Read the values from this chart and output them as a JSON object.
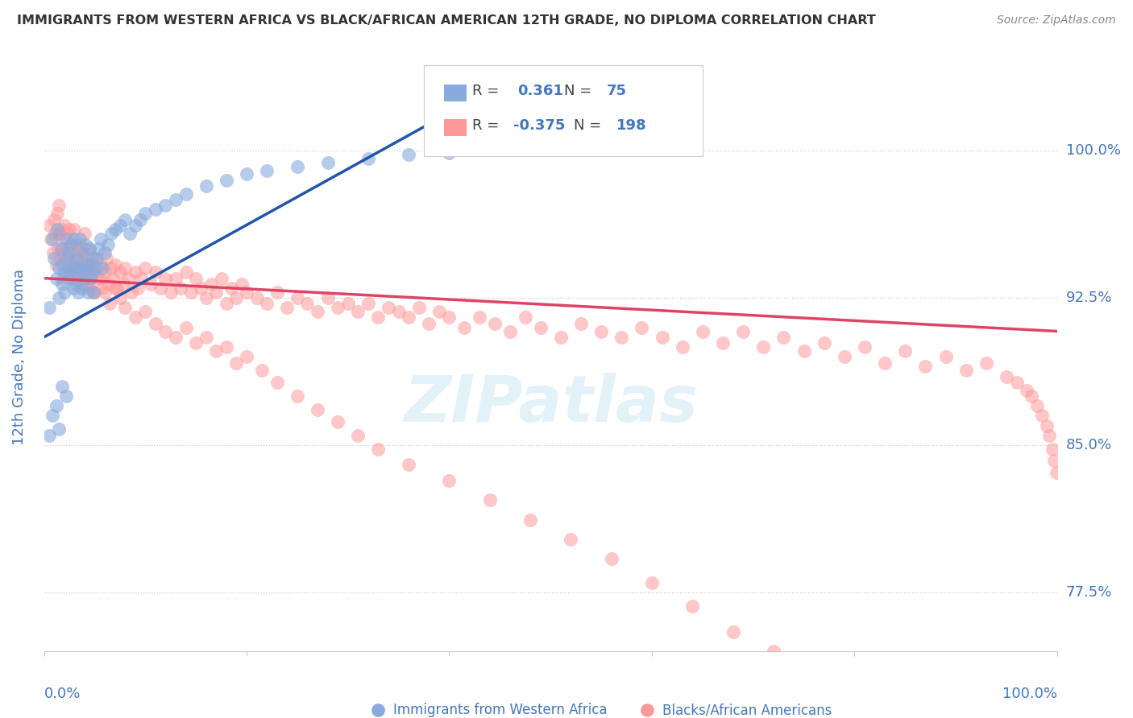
{
  "title": "IMMIGRANTS FROM WESTERN AFRICA VS BLACK/AFRICAN AMERICAN 12TH GRADE, NO DIPLOMA CORRELATION CHART",
  "source": "Source: ZipAtlas.com",
  "ylabel": "12th Grade, No Diploma",
  "ylabel_right_labels": [
    "77.5%",
    "85.0%",
    "92.5%",
    "100.0%"
  ],
  "ylabel_right_values": [
    0.775,
    0.85,
    0.925,
    1.0
  ],
  "xlim": [
    0.0,
    1.0
  ],
  "ylim": [
    0.745,
    1.045
  ],
  "watermark": "ZIPatlas",
  "legend_R1": "0.361",
  "legend_N1": "75",
  "legend_R2": "-0.375",
  "legend_N2": "198",
  "blue_color": "#88AADD",
  "pink_color": "#FF9999",
  "blue_line_color": "#2255AA",
  "pink_line_color": "#DD4466",
  "axis_label_color": "#4477BB",
  "blue_scatter_x": [
    0.005,
    0.008,
    0.01,
    0.012,
    0.013,
    0.015,
    0.015,
    0.017,
    0.018,
    0.019,
    0.02,
    0.02,
    0.022,
    0.023,
    0.024,
    0.025,
    0.026,
    0.027,
    0.028,
    0.029,
    0.03,
    0.03,
    0.031,
    0.032,
    0.033,
    0.034,
    0.035,
    0.036,
    0.037,
    0.038,
    0.039,
    0.04,
    0.041,
    0.042,
    0.043,
    0.044,
    0.045,
    0.046,
    0.047,
    0.048,
    0.049,
    0.05,
    0.052,
    0.054,
    0.056,
    0.058,
    0.06,
    0.063,
    0.066,
    0.07,
    0.075,
    0.08,
    0.085,
    0.09,
    0.095,
    0.1,
    0.11,
    0.12,
    0.13,
    0.14,
    0.16,
    0.18,
    0.2,
    0.22,
    0.25,
    0.28,
    0.32,
    0.36,
    0.4,
    0.005,
    0.008,
    0.012,
    0.015,
    0.018,
    0.022
  ],
  "blue_scatter_y": [
    0.92,
    0.955,
    0.945,
    0.935,
    0.96,
    0.94,
    0.925,
    0.95,
    0.932,
    0.942,
    0.938,
    0.928,
    0.955,
    0.945,
    0.935,
    0.948,
    0.938,
    0.952,
    0.94,
    0.93,
    0.942,
    0.955,
    0.932,
    0.945,
    0.938,
    0.928,
    0.955,
    0.94,
    0.93,
    0.948,
    0.935,
    0.942,
    0.952,
    0.938,
    0.928,
    0.942,
    0.95,
    0.935,
    0.945,
    0.938,
    0.928,
    0.94,
    0.945,
    0.95,
    0.955,
    0.94,
    0.948,
    0.952,
    0.958,
    0.96,
    0.962,
    0.965,
    0.958,
    0.962,
    0.965,
    0.968,
    0.97,
    0.972,
    0.975,
    0.978,
    0.982,
    0.985,
    0.988,
    0.99,
    0.992,
    0.994,
    0.996,
    0.998,
    0.999,
    0.855,
    0.865,
    0.87,
    0.858,
    0.88,
    0.875
  ],
  "pink_scatter_x": [
    0.005,
    0.007,
    0.009,
    0.01,
    0.011,
    0.012,
    0.013,
    0.014,
    0.015,
    0.015,
    0.016,
    0.017,
    0.018,
    0.019,
    0.02,
    0.02,
    0.021,
    0.022,
    0.022,
    0.023,
    0.024,
    0.025,
    0.025,
    0.026,
    0.027,
    0.028,
    0.029,
    0.03,
    0.03,
    0.031,
    0.032,
    0.033,
    0.034,
    0.035,
    0.035,
    0.036,
    0.037,
    0.038,
    0.039,
    0.04,
    0.04,
    0.041,
    0.042,
    0.043,
    0.044,
    0.045,
    0.046,
    0.047,
    0.048,
    0.049,
    0.05,
    0.052,
    0.054,
    0.056,
    0.058,
    0.06,
    0.062,
    0.064,
    0.066,
    0.068,
    0.07,
    0.072,
    0.075,
    0.078,
    0.08,
    0.083,
    0.086,
    0.09,
    0.093,
    0.096,
    0.1,
    0.105,
    0.11,
    0.115,
    0.12,
    0.125,
    0.13,
    0.135,
    0.14,
    0.145,
    0.15,
    0.155,
    0.16,
    0.165,
    0.17,
    0.175,
    0.18,
    0.185,
    0.19,
    0.195,
    0.2,
    0.21,
    0.22,
    0.23,
    0.24,
    0.25,
    0.26,
    0.27,
    0.28,
    0.29,
    0.3,
    0.31,
    0.32,
    0.33,
    0.34,
    0.35,
    0.36,
    0.37,
    0.38,
    0.39,
    0.4,
    0.415,
    0.43,
    0.445,
    0.46,
    0.475,
    0.49,
    0.51,
    0.53,
    0.55,
    0.57,
    0.59,
    0.61,
    0.63,
    0.65,
    0.67,
    0.69,
    0.71,
    0.73,
    0.75,
    0.77,
    0.79,
    0.81,
    0.83,
    0.85,
    0.87,
    0.89,
    0.91,
    0.93,
    0.95,
    0.96,
    0.97,
    0.975,
    0.98,
    0.985,
    0.99,
    0.992,
    0.995,
    0.997,
    0.999,
    0.015,
    0.02,
    0.025,
    0.028,
    0.03,
    0.032,
    0.035,
    0.038,
    0.04,
    0.042,
    0.045,
    0.048,
    0.05,
    0.055,
    0.06,
    0.065,
    0.07,
    0.075,
    0.08,
    0.09,
    0.1,
    0.11,
    0.12,
    0.13,
    0.14,
    0.15,
    0.16,
    0.17,
    0.18,
    0.19,
    0.2,
    0.215,
    0.23,
    0.25,
    0.27,
    0.29,
    0.31,
    0.33,
    0.36,
    0.4,
    0.44,
    0.48,
    0.52,
    0.56,
    0.6,
    0.64,
    0.68,
    0.72
  ],
  "pink_scatter_y": [
    0.962,
    0.955,
    0.948,
    0.965,
    0.958,
    0.942,
    0.968,
    0.95,
    0.958,
    0.972,
    0.945,
    0.96,
    0.95,
    0.935,
    0.962,
    0.945,
    0.955,
    0.948,
    0.938,
    0.958,
    0.945,
    0.96,
    0.938,
    0.952,
    0.942,
    0.948,
    0.935,
    0.96,
    0.942,
    0.952,
    0.938,
    0.948,
    0.935,
    0.952,
    0.942,
    0.938,
    0.95,
    0.935,
    0.945,
    0.958,
    0.938,
    0.948,
    0.94,
    0.932,
    0.942,
    0.95,
    0.935,
    0.942,
    0.938,
    0.928,
    0.945,
    0.94,
    0.935,
    0.942,
    0.93,
    0.938,
    0.945,
    0.932,
    0.94,
    0.935,
    0.942,
    0.93,
    0.938,
    0.932,
    0.94,
    0.935,
    0.928,
    0.938,
    0.93,
    0.935,
    0.94,
    0.932,
    0.938,
    0.93,
    0.935,
    0.928,
    0.935,
    0.93,
    0.938,
    0.928,
    0.935,
    0.93,
    0.925,
    0.932,
    0.928,
    0.935,
    0.922,
    0.93,
    0.925,
    0.932,
    0.928,
    0.925,
    0.922,
    0.928,
    0.92,
    0.925,
    0.922,
    0.918,
    0.925,
    0.92,
    0.922,
    0.918,
    0.922,
    0.915,
    0.92,
    0.918,
    0.915,
    0.92,
    0.912,
    0.918,
    0.915,
    0.91,
    0.915,
    0.912,
    0.908,
    0.915,
    0.91,
    0.905,
    0.912,
    0.908,
    0.905,
    0.91,
    0.905,
    0.9,
    0.908,
    0.902,
    0.908,
    0.9,
    0.905,
    0.898,
    0.902,
    0.895,
    0.9,
    0.892,
    0.898,
    0.89,
    0.895,
    0.888,
    0.892,
    0.885,
    0.882,
    0.878,
    0.875,
    0.87,
    0.865,
    0.86,
    0.855,
    0.848,
    0.842,
    0.836,
    0.958,
    0.948,
    0.94,
    0.935,
    0.95,
    0.94,
    0.945,
    0.932,
    0.942,
    0.935,
    0.93,
    0.938,
    0.928,
    0.935,
    0.928,
    0.922,
    0.93,
    0.925,
    0.92,
    0.915,
    0.918,
    0.912,
    0.908,
    0.905,
    0.91,
    0.902,
    0.905,
    0.898,
    0.9,
    0.892,
    0.895,
    0.888,
    0.882,
    0.875,
    0.868,
    0.862,
    0.855,
    0.848,
    0.84,
    0.832,
    0.822,
    0.812,
    0.802,
    0.792,
    0.78,
    0.768,
    0.755,
    0.745
  ]
}
